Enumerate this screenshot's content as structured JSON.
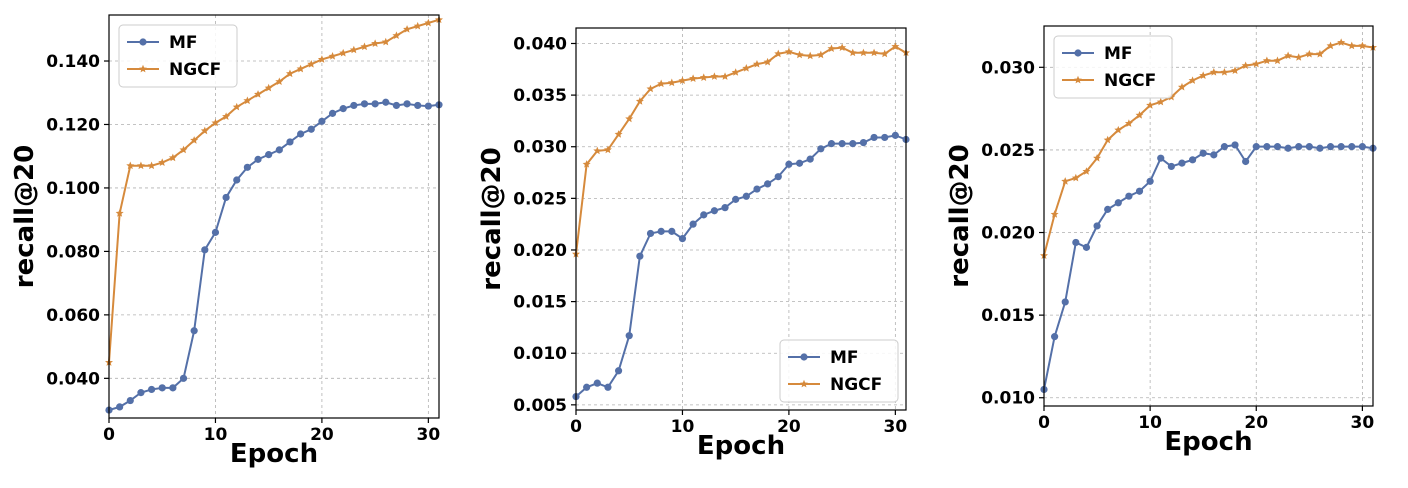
{
  "colors": {
    "MF": "#5470a8",
    "NGCF": "#d68a3c",
    "grid": "#b0b0b0"
  },
  "chart_data": [
    {
      "type": "line",
      "xlabel": "Epoch",
      "ylabel": "recall@20",
      "xlim": [
        0,
        31
      ],
      "ylim": [
        0.0275,
        0.1545
      ],
      "xticks": [
        0,
        10,
        20,
        30
      ],
      "yticks": [
        0.04,
        0.06,
        0.08,
        0.1,
        0.12,
        0.14
      ],
      "ytick_labels": [
        "0.040",
        "0.060",
        "0.080",
        "0.100",
        "0.120",
        "0.140"
      ],
      "grid": true,
      "legend_position": "upper-left",
      "x": [
        0,
        1,
        2,
        3,
        4,
        5,
        6,
        7,
        8,
        9,
        10,
        11,
        12,
        13,
        14,
        15,
        16,
        17,
        18,
        19,
        20,
        21,
        22,
        23,
        24,
        25,
        26,
        27,
        28,
        29,
        30,
        31
      ],
      "series": [
        {
          "name": "MF",
          "marker": "circle",
          "values": [
            0.03,
            0.031,
            0.033,
            0.0355,
            0.0365,
            0.037,
            0.037,
            0.04,
            0.055,
            0.0805,
            0.086,
            0.097,
            0.1025,
            0.1065,
            0.109,
            0.1105,
            0.112,
            0.1145,
            0.117,
            0.1185,
            0.121,
            0.1235,
            0.125,
            0.126,
            0.1265,
            0.1265,
            0.127,
            0.126,
            0.1265,
            0.126,
            0.1258,
            0.1262
          ]
        },
        {
          "name": "NGCF",
          "marker": "star",
          "values": [
            0.045,
            0.092,
            0.107,
            0.107,
            0.107,
            0.108,
            0.1095,
            0.112,
            0.115,
            0.118,
            0.1205,
            0.1225,
            0.1255,
            0.1275,
            0.1295,
            0.1315,
            0.1335,
            0.136,
            0.1375,
            0.139,
            0.1405,
            0.1415,
            0.1425,
            0.1435,
            0.1445,
            0.1455,
            0.146,
            0.148,
            0.15,
            0.151,
            0.152,
            0.153
          ]
        }
      ]
    },
    {
      "type": "line",
      "xlabel": "Epoch",
      "ylabel": "recall@20",
      "xlim": [
        0,
        31
      ],
      "ylim": [
        0.0045,
        0.0415
      ],
      "xticks": [
        0,
        10,
        20,
        30
      ],
      "yticks": [
        0.005,
        0.01,
        0.015,
        0.02,
        0.025,
        0.03,
        0.035,
        0.04
      ],
      "ytick_labels": [
        "0.005",
        "0.010",
        "0.015",
        "0.020",
        "0.025",
        "0.030",
        "0.035",
        "0.040"
      ],
      "grid": true,
      "legend_position": "lower-right",
      "x": [
        0,
        1,
        2,
        3,
        4,
        5,
        6,
        7,
        8,
        9,
        10,
        11,
        12,
        13,
        14,
        15,
        16,
        17,
        18,
        19,
        20,
        21,
        22,
        23,
        24,
        25,
        26,
        27,
        28,
        29,
        30,
        31
      ],
      "series": [
        {
          "name": "MF",
          "marker": "circle",
          "values": [
            0.0058,
            0.0067,
            0.0071,
            0.0067,
            0.0083,
            0.0117,
            0.0194,
            0.0216,
            0.0218,
            0.0218,
            0.0211,
            0.0225,
            0.0234,
            0.0238,
            0.0241,
            0.0249,
            0.0252,
            0.0259,
            0.0264,
            0.0271,
            0.0283,
            0.0284,
            0.0288,
            0.0298,
            0.0303,
            0.0303,
            0.0303,
            0.0304,
            0.0309,
            0.0309,
            0.0311,
            0.0307
          ]
        },
        {
          "name": "NGCF",
          "marker": "star",
          "values": [
            0.0196,
            0.0283,
            0.0296,
            0.0297,
            0.0312,
            0.0327,
            0.0344,
            0.0356,
            0.0361,
            0.0362,
            0.0364,
            0.0366,
            0.0367,
            0.0368,
            0.0368,
            0.0372,
            0.0376,
            0.038,
            0.0382,
            0.039,
            0.0392,
            0.0389,
            0.0388,
            0.0389,
            0.0395,
            0.0396,
            0.0391,
            0.0391,
            0.0391,
            0.039,
            0.0397,
            0.0391
          ]
        }
      ]
    },
    {
      "type": "line",
      "xlabel": "Epoch",
      "ylabel": "recall@20",
      "xlim": [
        0,
        31
      ],
      "ylim": [
        0.0095,
        0.0325
      ],
      "xticks": [
        0,
        10,
        20,
        30
      ],
      "yticks": [
        0.01,
        0.015,
        0.02,
        0.025,
        0.03
      ],
      "ytick_labels": [
        "0.010",
        "0.015",
        "0.020",
        "0.025",
        "0.030"
      ],
      "grid": true,
      "legend_position": "upper-left",
      "x": [
        0,
        1,
        2,
        3,
        4,
        5,
        6,
        7,
        8,
        9,
        10,
        11,
        12,
        13,
        14,
        15,
        16,
        17,
        18,
        19,
        20,
        21,
        22,
        23,
        24,
        25,
        26,
        27,
        28,
        29,
        30,
        31
      ],
      "series": [
        {
          "name": "MF",
          "marker": "circle",
          "values": [
            0.0105,
            0.0137,
            0.0158,
            0.0194,
            0.0191,
            0.0204,
            0.0214,
            0.0218,
            0.0222,
            0.0225,
            0.0231,
            0.0245,
            0.024,
            0.0242,
            0.0244,
            0.0248,
            0.0247,
            0.0252,
            0.0253,
            0.0243,
            0.0252,
            0.0252,
            0.0252,
            0.0251,
            0.0252,
            0.0252,
            0.0251,
            0.0252,
            0.0252,
            0.0252,
            0.0252,
            0.0251
          ]
        },
        {
          "name": "NGCF",
          "marker": "star",
          "values": [
            0.0186,
            0.0211,
            0.0231,
            0.0233,
            0.0237,
            0.0245,
            0.0256,
            0.0262,
            0.0266,
            0.0271,
            0.0277,
            0.0279,
            0.0282,
            0.0288,
            0.0292,
            0.0295,
            0.0297,
            0.0297,
            0.0298,
            0.0301,
            0.0302,
            0.0304,
            0.0304,
            0.0307,
            0.0306,
            0.0308,
            0.0308,
            0.0313,
            0.0315,
            0.0313,
            0.0313,
            0.0312
          ]
        }
      ]
    }
  ]
}
